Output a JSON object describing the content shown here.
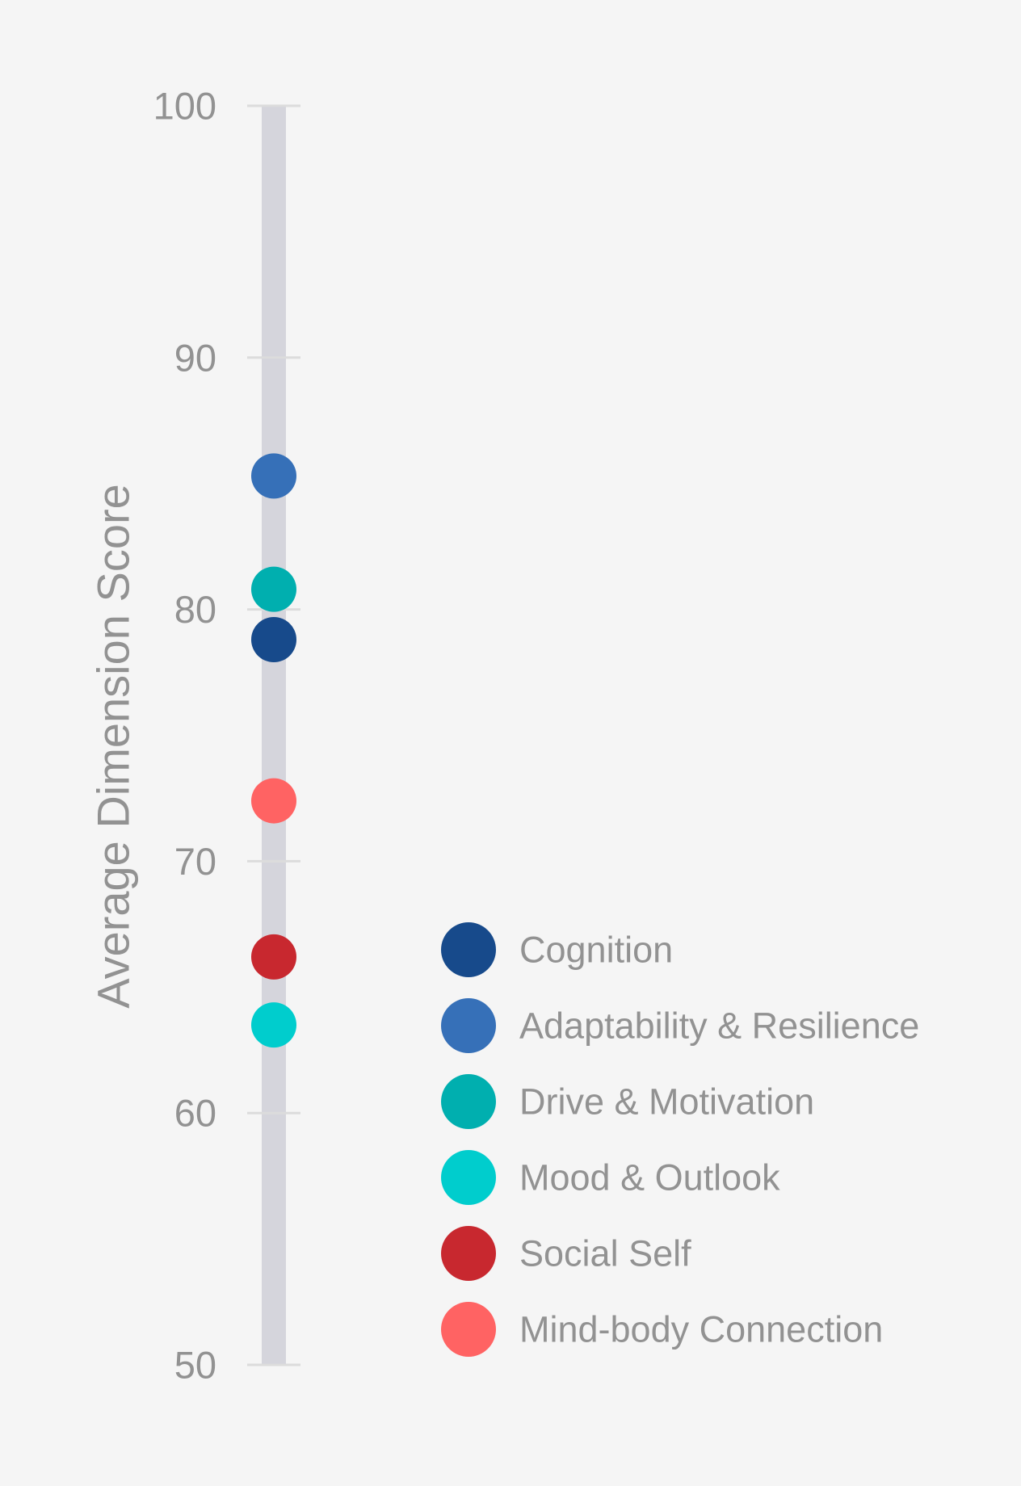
{
  "chart_data": {
    "type": "scatter",
    "title": "",
    "xlabel": "",
    "ylabel": "Average Dimension Score",
    "ylim": [
      50,
      100
    ],
    "yticks": [
      100,
      90,
      80,
      70,
      60,
      50
    ],
    "grid": false,
    "legend_position": "bottom-right",
    "series": [
      {
        "name": "Cognition",
        "value": 78.8,
        "color": "#174a8b"
      },
      {
        "name": "Adaptability & Resilience",
        "value": 85.3,
        "color": "#3670b8"
      },
      {
        "name": "Drive & Motivation",
        "value": 80.8,
        "color": "#00afaf"
      },
      {
        "name": "Mood & Outlook",
        "value": 63.5,
        "color": "#00cdcd"
      },
      {
        "name": "Social Self",
        "value": 66.2,
        "color": "#c8282f"
      },
      {
        "name": "Mind-body Connection",
        "value": 72.4,
        "color": "#ff6363"
      }
    ],
    "track_color": "#d5d5dc",
    "text_color": "#929292"
  }
}
